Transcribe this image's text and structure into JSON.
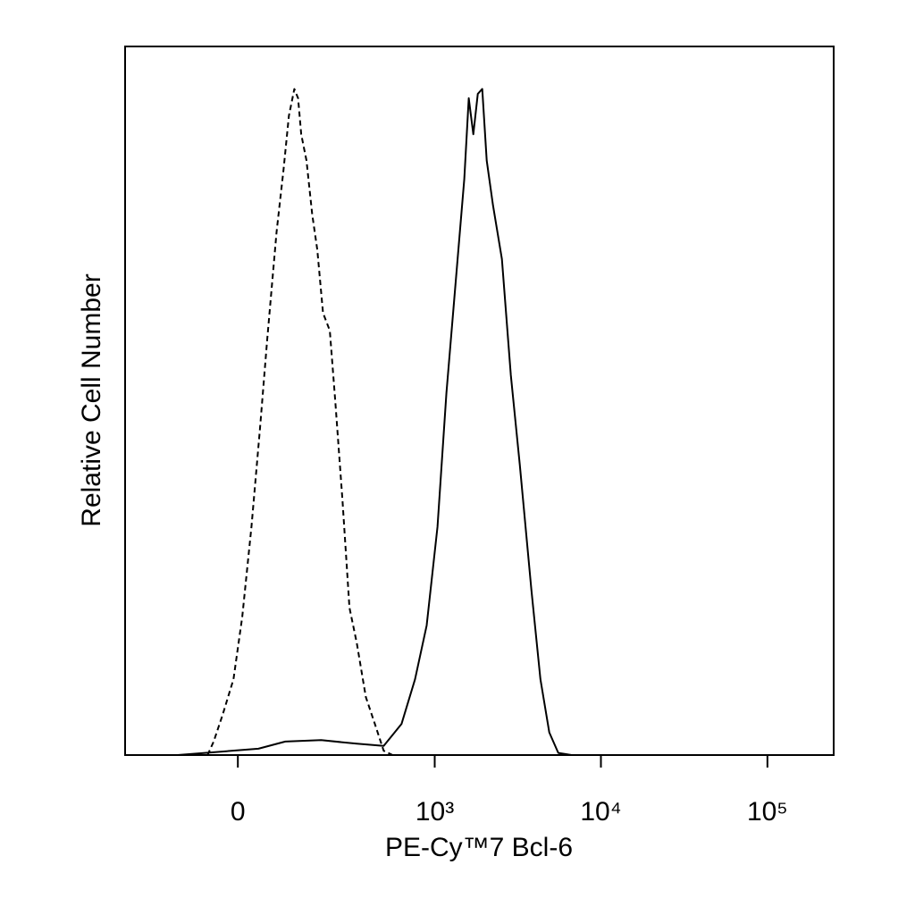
{
  "chart_data": {
    "type": "line",
    "x_label": "PE-Cy™7 Bcl-6",
    "y_label": "Relative Cell Number",
    "xscale": "biexponential",
    "xlim": [
      -300,
      250000
    ],
    "xticks": [
      0,
      {
        "value": 1000,
        "label": "10³"
      },
      {
        "value": 10000,
        "label": "10⁴"
      },
      {
        "value": 100000,
        "label": "10⁵"
      }
    ],
    "ylim": [
      0,
      100
    ],
    "series": [
      {
        "color": "#000000",
        "linestyle": "dashed",
        "x": [
          -57,
          -45,
          -28,
          -8,
          8,
          25,
          41,
          55,
          74,
          89,
          101,
          114,
          123,
          131,
          145,
          161,
          176,
          194,
          217,
          237,
          265,
          295,
          329,
          376,
          429,
          487,
          553
        ],
        "values": [
          0,
          1.9,
          5.7,
          10.7,
          19.5,
          32.2,
          46,
          58.6,
          73.8,
          82.6,
          90.2,
          94,
          92.7,
          87.6,
          83.9,
          76.3,
          71.3,
          62.4,
          59.9,
          49.8,
          35.9,
          20.8,
          15.8,
          8.2,
          4.4,
          0.6,
          0
        ]
      },
      {
        "color": "#000000",
        "linestyle": "solid",
        "x": [
          -123,
          38,
          93,
          188,
          329,
          487,
          628,
          759,
          894,
          1039,
          1177,
          1333,
          1509,
          1606,
          1709,
          1819,
          1935,
          2059,
          2245,
          2541,
          2876,
          3255,
          3821,
          4330,
          4897,
          5544,
          6666,
          240000
        ],
        "values": [
          0,
          0.9,
          1.9,
          2.1,
          1.6,
          1.3,
          4.4,
          10.7,
          18.3,
          32.2,
          51.1,
          66.2,
          81.3,
          92.7,
          87.6,
          93.3,
          94,
          83.9,
          77.6,
          70,
          53.6,
          41,
          23.3,
          10.7,
          3.2,
          0.3,
          0,
          0
        ]
      }
    ]
  }
}
